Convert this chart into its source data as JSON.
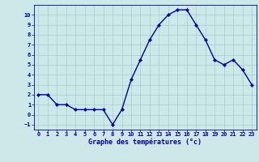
{
  "x": [
    0,
    1,
    2,
    3,
    4,
    5,
    6,
    7,
    8,
    9,
    10,
    11,
    12,
    13,
    14,
    15,
    16,
    17,
    18,
    19,
    20,
    21,
    22,
    23
  ],
  "y": [
    2.0,
    2.0,
    1.0,
    1.0,
    0.5,
    0.5,
    0.5,
    0.5,
    -1.0,
    0.5,
    3.5,
    5.5,
    7.5,
    9.0,
    10.0,
    10.5,
    10.5,
    9.0,
    7.5,
    5.5,
    5.0,
    5.5,
    4.5,
    3.0
  ],
  "line_color": "#0000aa",
  "marker": "D",
  "markersize": 2.0,
  "linewidth": 1.0,
  "xlabel": "Graphe des températures (°c)",
  "xlabel_color": "#0000aa",
  "background_color": "#cce8e8",
  "grid_color": "#aacccc",
  "tick_color": "#0000aa",
  "xlim": [
    -0.5,
    23.5
  ],
  "ylim": [
    -1.5,
    11.0
  ],
  "yticks": [
    -1,
    0,
    1,
    2,
    3,
    4,
    5,
    6,
    7,
    8,
    9,
    10
  ],
  "xticks": [
    0,
    1,
    2,
    3,
    4,
    5,
    6,
    7,
    8,
    9,
    10,
    11,
    12,
    13,
    14,
    15,
    16,
    17,
    18,
    19,
    20,
    21,
    22,
    23
  ],
  "tick_fontsize": 5.0,
  "xlabel_fontsize": 6.0
}
